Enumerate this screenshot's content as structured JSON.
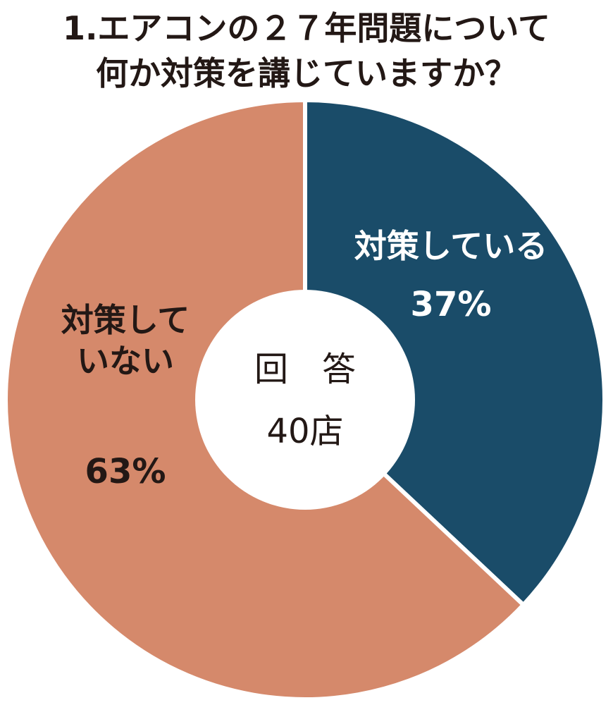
{
  "chart_data": {
    "type": "pie",
    "title": "1.エアコンの２７年問題について何か対策を講じていますか？",
    "title_lines": [
      "1.エアコンの２７年問題について",
      "何か対策を講じていますか？"
    ],
    "center_label": [
      "回　答",
      "40店"
    ],
    "slices": [
      {
        "label_lines": [
          "対策している"
        ],
        "value": 37,
        "value_label": "37%",
        "color": "#1a4c69",
        "text_color": "#ffffff"
      },
      {
        "label_lines": [
          "対策して",
          "いない"
        ],
        "value": 63,
        "value_label": "63%",
        "color": "#d5896b",
        "text_color": "#231815"
      }
    ],
    "start_angle": "12 o'clock",
    "direction": "clockwise",
    "legend": "none"
  }
}
